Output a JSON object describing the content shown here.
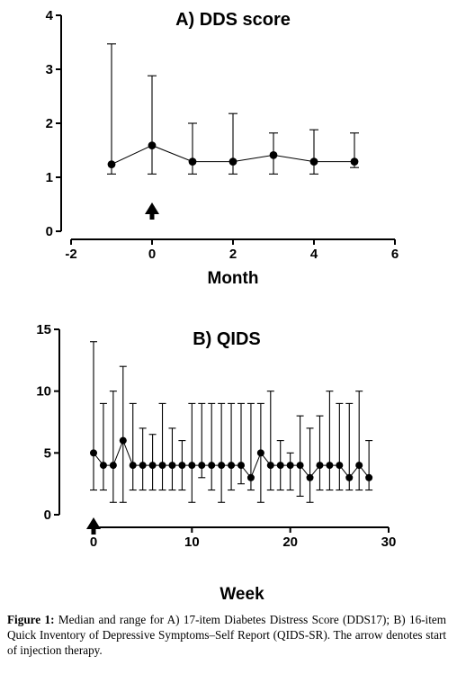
{
  "chart_data": [
    {
      "type": "scatter",
      "title": "A) DDS score",
      "xlabel": "Month",
      "ylabel": "",
      "xlim": [
        -2,
        6
      ],
      "ylim": [
        0,
        4
      ],
      "xticks": [
        -2,
        0,
        2,
        4,
        6
      ],
      "yticks": [
        0,
        1,
        2,
        3,
        4
      ],
      "grid": false,
      "series": [
        {
          "x": [
            -1,
            0,
            1,
            2,
            3,
            4,
            5
          ],
          "median": [
            1.24,
            1.59,
            1.29,
            1.29,
            1.41,
            1.29,
            1.29
          ],
          "min": [
            1.06,
            1.06,
            1.06,
            1.06,
            1.06,
            1.06,
            1.18
          ],
          "max": [
            3.47,
            2.88,
            2.0,
            2.18,
            1.82,
            1.88,
            1.82
          ]
        }
      ],
      "annotations": [
        {
          "type": "arrow",
          "x": 0,
          "meaning": "start of injection therapy"
        }
      ]
    },
    {
      "type": "scatter",
      "title": "B) QIDS",
      "xlabel": "Week",
      "ylabel": "",
      "xlim": [
        0,
        30
      ],
      "ylim": [
        0,
        15
      ],
      "xticks": [
        0,
        10,
        20,
        30
      ],
      "yticks": [
        0,
        5,
        10,
        15
      ],
      "grid": false,
      "series": [
        {
          "x": [
            0,
            1,
            2,
            3,
            4,
            5,
            6,
            7,
            8,
            9,
            10,
            11,
            12,
            13,
            14,
            15,
            16,
            17,
            18,
            19,
            20,
            21,
            22,
            23,
            24,
            25,
            26,
            27,
            28
          ],
          "median": [
            5,
            4,
            4,
            6,
            4,
            4,
            4,
            4,
            4,
            4,
            4,
            4,
            4,
            4,
            4,
            4,
            3,
            5,
            4,
            4,
            4,
            4,
            3,
            4,
            4,
            4,
            3,
            4,
            3
          ],
          "min": [
            2,
            2,
            1,
            1,
            2,
            2,
            2,
            2,
            2,
            2,
            1,
            3,
            2,
            1,
            2,
            2.5,
            2,
            1,
            2,
            2,
            2,
            1.5,
            1,
            2,
            2,
            2,
            2,
            2,
            2
          ],
          "max": [
            14,
            9,
            10,
            12,
            9,
            7,
            6.5,
            9,
            7,
            6,
            9,
            9,
            9,
            9,
            9,
            9,
            9,
            9,
            10,
            6,
            5,
            8,
            7,
            8,
            10,
            9,
            9,
            10,
            6
          ]
        }
      ],
      "annotations": [
        {
          "type": "arrow",
          "x": 0,
          "meaning": "start of injection therapy"
        }
      ]
    }
  ],
  "caption": {
    "label": "Figure 1:",
    "text": "Median and range for A) 17-item Diabetes Distress Score (DDS17); B) 16-item Quick Inventory of Depressive Symptoms–Self Report (QIDS-SR). The arrow denotes start of injection therapy."
  }
}
